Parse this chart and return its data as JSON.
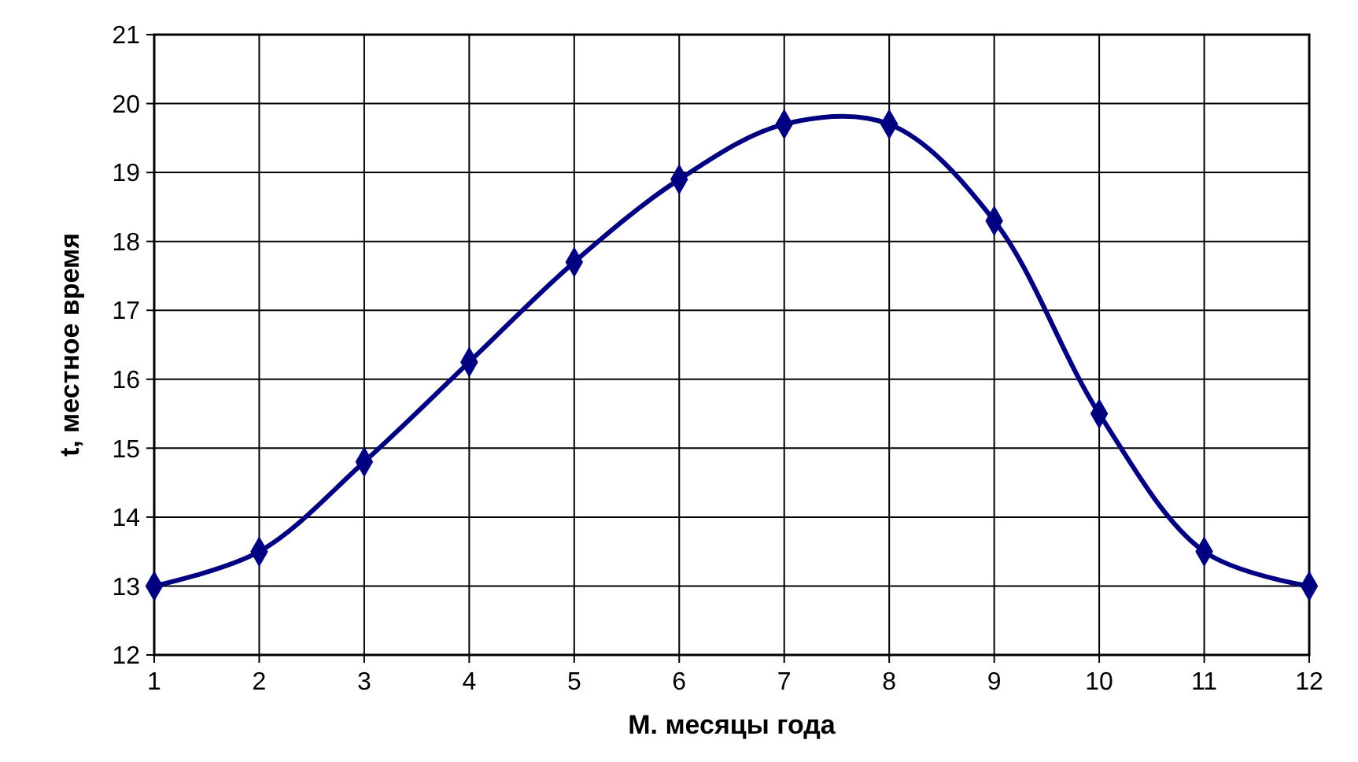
{
  "chart_data": {
    "type": "line",
    "xlabel": "М. месяцы года",
    "ylabel": "t, местное время",
    "x": [
      1,
      2,
      3,
      4,
      5,
      6,
      7,
      8,
      9,
      10,
      11,
      12
    ],
    "series": [
      {
        "color": "#000080",
        "values": [
          13,
          13.5,
          14.8,
          16.25,
          17.7,
          18.9,
          19.7,
          19.7,
          18.3,
          15.5,
          13.5,
          13
        ]
      }
    ],
    "xlim": [
      1,
      12
    ],
    "xticks": [
      1,
      2,
      3,
      4,
      5,
      6,
      7,
      8,
      9,
      10,
      11,
      12
    ],
    "ylim": [
      12,
      21
    ],
    "yticks": [
      12,
      13,
      14,
      15,
      16,
      17,
      18,
      19,
      20,
      21
    ],
    "grid": true,
    "marker": "diamond",
    "line_style": "solid"
  }
}
